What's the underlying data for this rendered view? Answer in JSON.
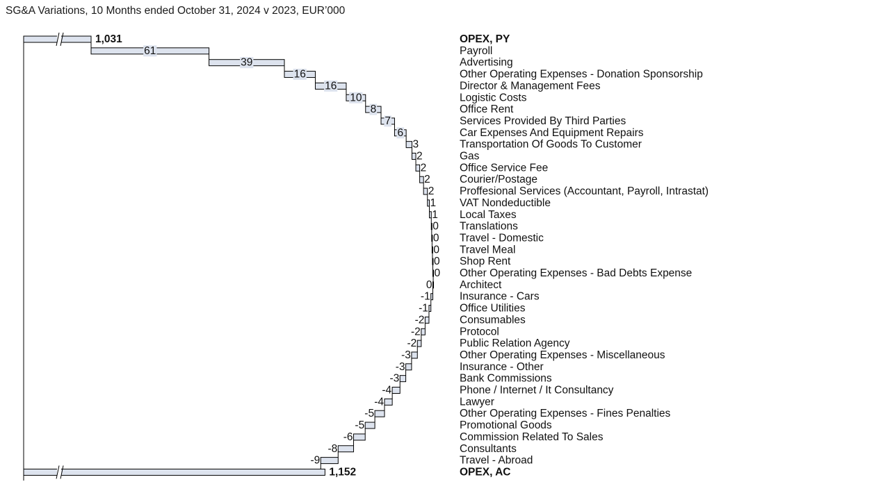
{
  "chart_data": {
    "type": "bar",
    "subtype": "horizontal-waterfall",
    "title": "SG&A Variations, 10 Months ended October 31, 2024 v 2023, EUR’000",
    "start": {
      "label": "OPEX, PY",
      "value": 1031,
      "value_label": "1,031"
    },
    "end": {
      "label": "OPEX, AC",
      "value": 1152,
      "value_label": "1,152"
    },
    "axis_break": true,
    "categories": [
      "Payroll",
      "Advertising",
      "Other Operating Expenses - Donation Sponsorship",
      "Director & Management Fees",
      "Logistic Costs",
      "Office Rent",
      "Services Provided By Third Parties",
      "Car Expenses And Equipment Repairs",
      "Transportation Of Goods To Customer",
      "Gas",
      "Office Service Fee",
      "Courier/Postage",
      "Proffesional Services (Accountant, Payroll, Intrastat)",
      "VAT Nondeductible",
      "Local Taxes",
      "Translations",
      "Travel - Domestic",
      "Travel Meal",
      "Shop Rent",
      "Other Operating Expenses - Bad Debts Expense",
      "Architect",
      "Insurance - Cars",
      "Office Utilities",
      "Consumables",
      "Protocol",
      "Public Relation Agency",
      "Other Operating Expenses - Miscellaneous",
      "Insurance - Other",
      "Bank Commissions",
      "Phone / Internet / It Consultancy",
      "Lawyer",
      "Other Operating Expenses - Fines Penalties",
      "Promotional Goods",
      "Commission Related To Sales",
      "Consultants",
      "Travel - Abroad"
    ],
    "values": [
      61,
      39,
      16,
      16,
      10,
      8,
      7,
      6,
      3,
      2,
      2,
      2,
      2,
      1,
      1,
      0.2,
      0.2,
      0.2,
      0.2,
      0.2,
      -0.2,
      -1,
      -1,
      -2,
      -2,
      -2,
      -3,
      -3,
      -3,
      -4,
      -4,
      -5,
      -5,
      -6,
      -8,
      -9
    ],
    "value_labels": [
      "61",
      "39",
      "16",
      "16",
      "10",
      "8",
      "7",
      "6",
      "3",
      "2",
      "2",
      "2",
      "2",
      "1",
      "1",
      "0",
      "0",
      "0",
      "0",
      "0",
      "0",
      "-1",
      "-1",
      "-2",
      "-2",
      "-2",
      "-3",
      "-3",
      "-3",
      "-4",
      "-4",
      "-5",
      "-5",
      "-6",
      "-8",
      "-9"
    ],
    "colors": {
      "bar_fill": "#dde3ee",
      "bar_stroke": "#000000",
      "label_bg": "#dde3ee",
      "text": "#111111"
    }
  }
}
